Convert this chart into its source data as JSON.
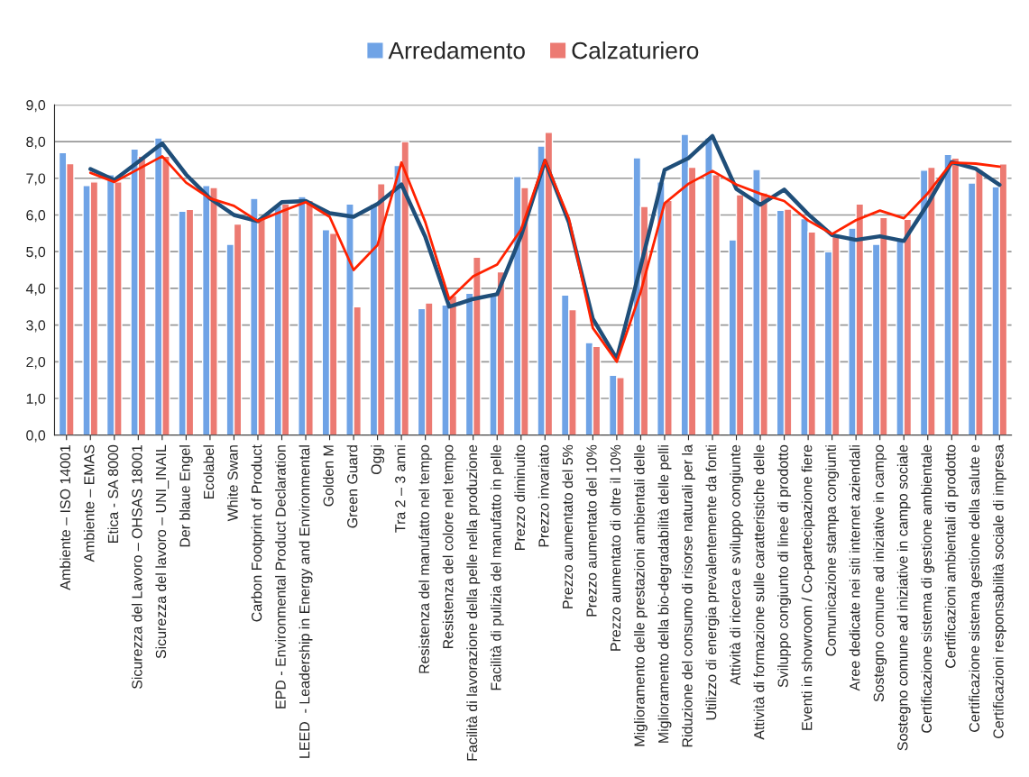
{
  "chart_data": {
    "type": "bar",
    "categories": [
      "Ambiente – ISO 14001",
      "Ambiente – EMAS",
      "Etica - SA 8000",
      "Sicurezza del Lavoro – OHSAS 18001",
      "Sicurezza del lavoro – UNI_INAIL",
      "Der blaue Engel",
      "Ecolabel",
      "White Swan",
      "Carbon Footprint of Product",
      "EPD - Environmental Product Declaration",
      "LEED  - Leadership in Energy and Environmental",
      "Golden M",
      "Green Guard",
      "Oggi",
      "Tra 2 – 3 anni",
      "Resistenza del manufatto nel tempo",
      "Resistenza del colore nel tempo",
      "Facilità di lavorazione della pelle nella produzione",
      "Facilità di pulizia del manufatto in pelle",
      "Prezzo diminuito",
      "Prezzo invariato",
      "Prezzo aumentato del 5%",
      "Prezzo aumentato del 10%",
      "Prezzo aumentato di oltre il 10%",
      "Miglioramento delle prestazioni ambientali delle",
      "Miglioramento della bio-degradabilità delle pelli",
      "Riduzione del consumo di risorse naturali per la",
      "Utilizzo di energia prevalentemente da fonti",
      "Attività di ricerca e sviluppo congiunte",
      "Attività di formazione sulle caratteristiche delle",
      "Sviluppo congiunto di linee di prodotto",
      "Eventi in showroom / Co-partecipazione fiere",
      "Comunicazione stampa congiunti",
      "Aree dedicate nei siti internet aziendali",
      "Sostegno comune ad iniziative in campo",
      "Sostegno comune ad iniziative in campo sociale",
      "Certificazione sistema di gestione ambientale",
      "Certificazioni ambientali di prodotto",
      "Certificazione sistema gestione della salute e",
      "Certificazioni responsabilità sociale di impresa"
    ],
    "series": [
      {
        "name": "Arredamento",
        "color": "#6fa3e6",
        "values": [
          7.7,
          6.8,
          7.1,
          7.8,
          8.1,
          6.1,
          6.8,
          5.2,
          6.45,
          6.25,
          6.5,
          5.6,
          6.3,
          6.3,
          7.35,
          3.45,
          3.55,
          3.87,
          3.8,
          7.05,
          7.88,
          3.82,
          2.52,
          1.63,
          7.56,
          6.9,
          8.2,
          8.1,
          5.32,
          7.24,
          6.13,
          5.9,
          5.0,
          5.64,
          5.2,
          5.37,
          7.22,
          7.65,
          6.87,
          6.77
        ]
      },
      {
        "name": "Calzaturiero",
        "color": "#ec7a72",
        "values": [
          7.4,
          6.9,
          6.9,
          7.6,
          7.6,
          6.15,
          6.75,
          5.75,
          5.9,
          6.3,
          6.4,
          5.5,
          3.5,
          6.85,
          8.0,
          3.6,
          3.8,
          4.85,
          4.45,
          6.75,
          8.25,
          3.42,
          2.42,
          1.57,
          6.23,
          6.4,
          7.3,
          7.1,
          6.55,
          6.6,
          6.16,
          5.54,
          5.41,
          6.3,
          5.93,
          5.88,
          7.3,
          7.55,
          7.24,
          7.39
        ]
      },
      {
        "type": "line",
        "color": "#1f4e79",
        "values": [
          null,
          7.25,
          6.95,
          7.45,
          7.95,
          7.1,
          6.45,
          6.0,
          5.83,
          6.35,
          6.38,
          6.05,
          5.95,
          6.3,
          6.83,
          5.4,
          3.5,
          3.71,
          3.84,
          5.43,
          7.47,
          5.8,
          3.17,
          2.08,
          4.6,
          7.23,
          7.55,
          8.15,
          6.71,
          6.28,
          6.69,
          6.02,
          5.45,
          5.32,
          5.42,
          5.29,
          6.3,
          7.44,
          7.26,
          6.82
        ]
      },
      {
        "type": "line",
        "color": "#ff2200",
        "values": [
          null,
          7.15,
          6.9,
          7.25,
          7.6,
          6.88,
          6.45,
          6.25,
          5.83,
          6.1,
          6.35,
          5.95,
          4.5,
          5.18,
          7.43,
          5.8,
          3.7,
          4.33,
          4.65,
          5.6,
          7.5,
          5.9,
          2.92,
          2.0,
          3.9,
          6.32,
          6.85,
          7.2,
          6.83,
          6.58,
          6.38,
          5.85,
          5.48,
          5.86,
          6.12,
          5.91,
          6.59,
          7.43,
          7.4,
          7.32
        ]
      }
    ],
    "ylim": [
      0,
      9
    ],
    "yticks": [
      {
        "value": 0,
        "label": "0,0"
      },
      {
        "value": 1,
        "label": "1,0"
      },
      {
        "value": 2,
        "label": "2,0"
      },
      {
        "value": 3,
        "label": "3,0"
      },
      {
        "value": 4,
        "label": "4,0"
      },
      {
        "value": 5,
        "label": "5,0"
      },
      {
        "value": 6,
        "label": "6,0"
      },
      {
        "value": 7,
        "label": "7,0"
      },
      {
        "value": 8,
        "label": "8,0"
      },
      {
        "value": 9,
        "label": "9,0"
      }
    ],
    "grid": "y",
    "legend": "top"
  }
}
